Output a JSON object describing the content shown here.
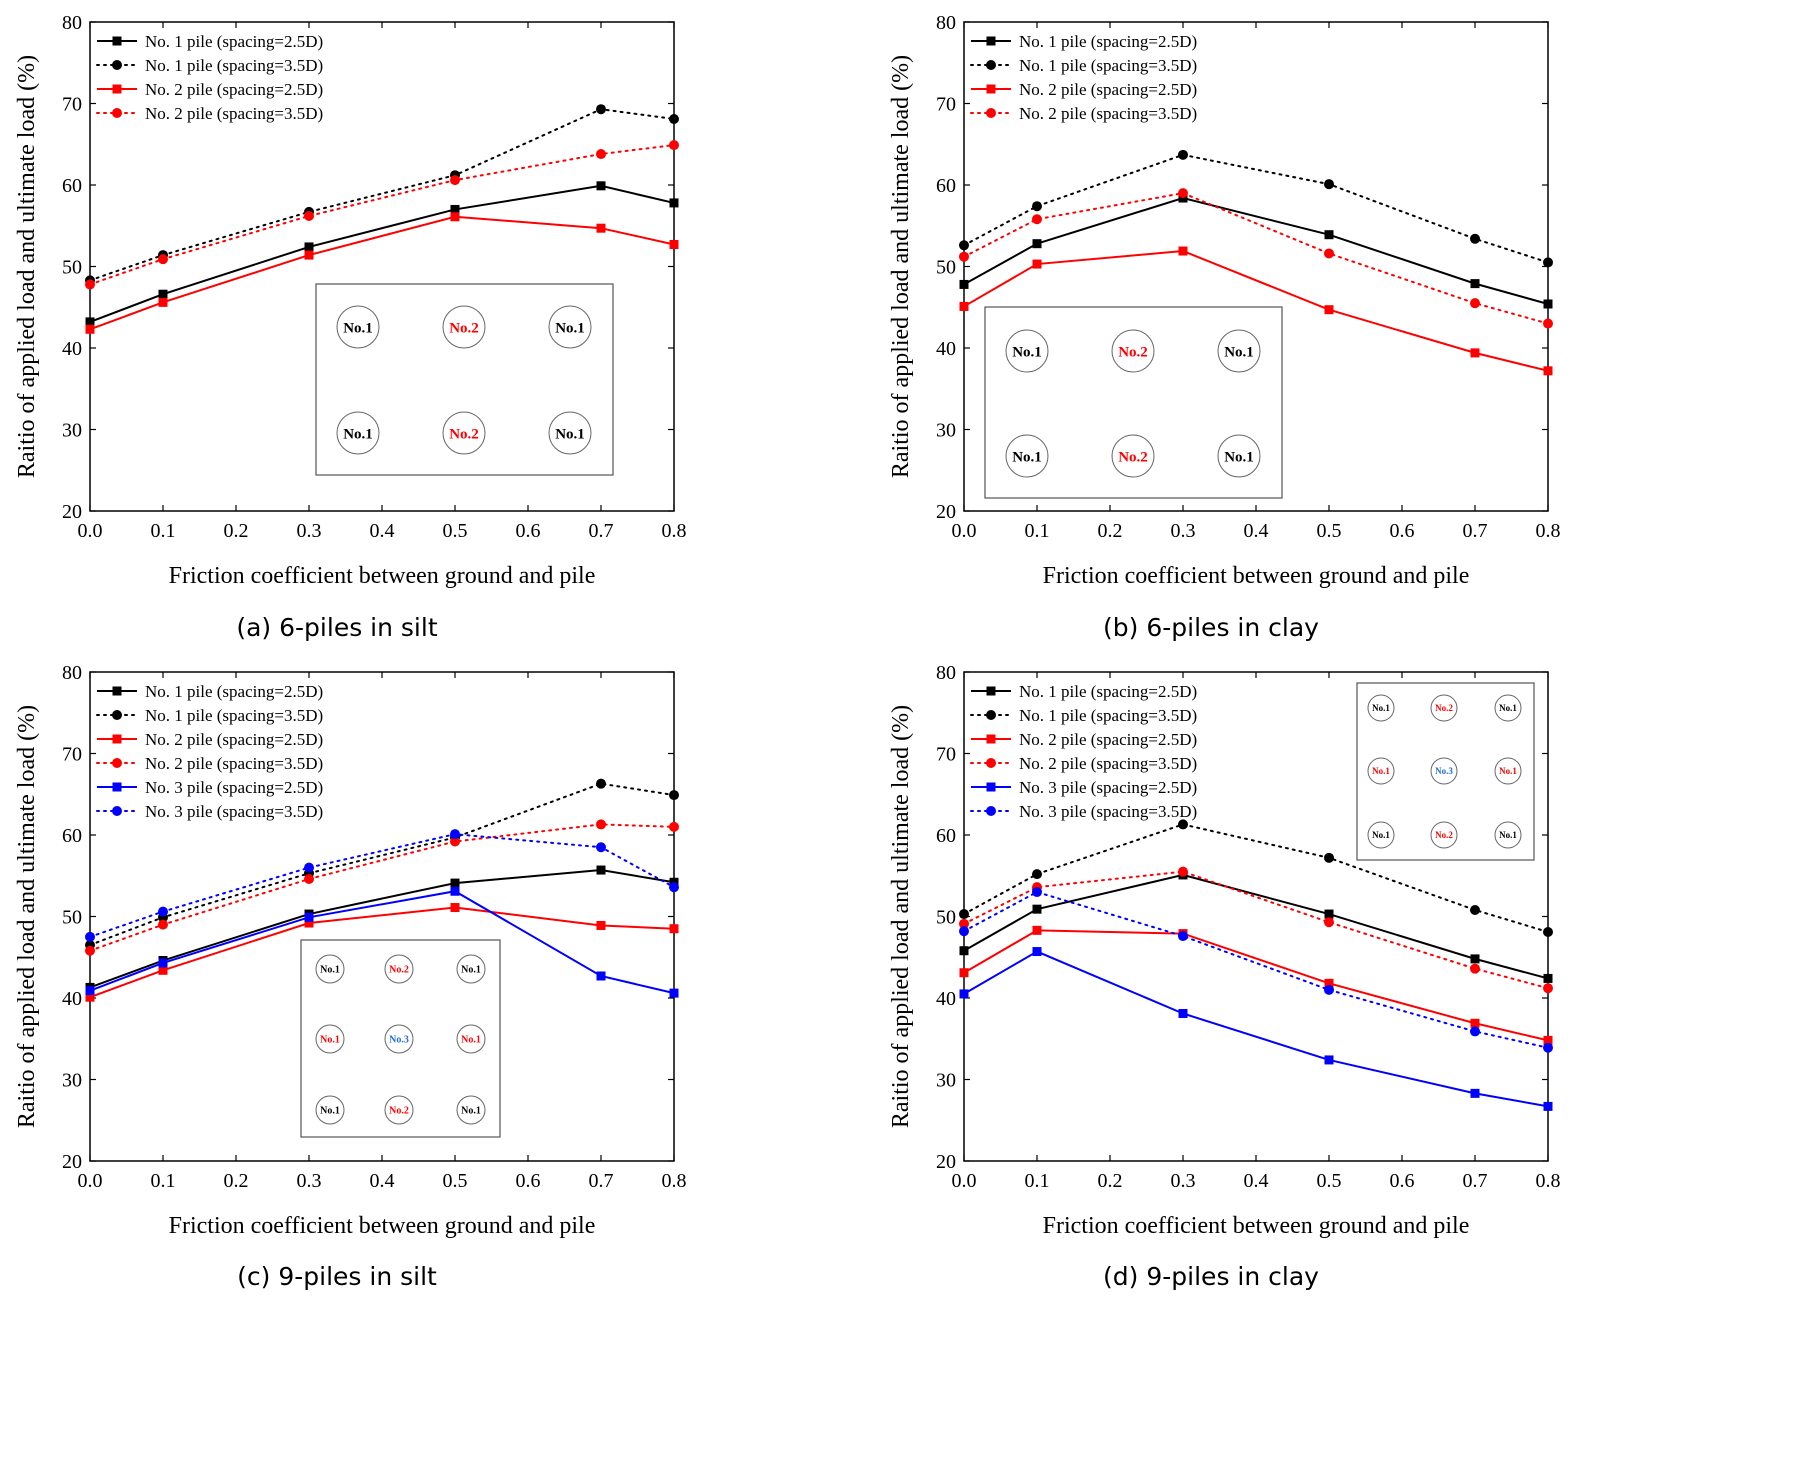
{
  "colors": {
    "black": "#000000",
    "red": "#ff0000",
    "blue": "#0000ff",
    "inset_blue": "#1f6fd1",
    "frame": "#000000",
    "inset_border": "#555555",
    "pile_circle": "#666666"
  },
  "chart_data": [
    {
      "type": "line",
      "caption": "(a) 6-piles in silt",
      "xlabel": "Friction coefficient between ground and pile",
      "ylabel": "Raitio of applied load and ultimate load (%)",
      "xlim": [
        0.0,
        0.8
      ],
      "ylim": [
        20,
        80
      ],
      "xticks": [
        "0.0",
        "0.1",
        "0.2",
        "0.3",
        "0.4",
        "0.5",
        "0.6",
        "0.7",
        "0.8"
      ],
      "yticks": [
        "20",
        "30",
        "40",
        "50",
        "60",
        "70",
        "80"
      ],
      "legend_position": "top-left",
      "x": [
        0.0,
        0.1,
        0.3,
        0.5,
        0.7,
        0.8
      ],
      "series": [
        {
          "name": "No. 1 pile (spacing=2.5D)",
          "color": "black",
          "style": "solid",
          "marker": "square",
          "values": [
            43.2,
            46.6,
            52.4,
            57.0,
            59.9,
            57.8
          ]
        },
        {
          "name": "No. 1 pile (spacing=3.5D)",
          "color": "black",
          "style": "dotted",
          "marker": "circle",
          "values": [
            48.3,
            51.4,
            56.7,
            61.2,
            69.3,
            68.1
          ]
        },
        {
          "name": "No. 2 pile (spacing=2.5D)",
          "color": "red",
          "style": "solid",
          "marker": "square",
          "values": [
            42.3,
            45.6,
            51.4,
            56.1,
            54.7,
            52.7
          ]
        },
        {
          "name": "No. 2 pile (spacing=3.5D)",
          "color": "red",
          "style": "dotted",
          "marker": "circle",
          "values": [
            47.8,
            50.9,
            56.2,
            60.6,
            63.8,
            64.9
          ]
        }
      ],
      "inset": {
        "rows": [
          [
            {
              "text": "No.1",
              "color": "black"
            },
            {
              "text": "No.2",
              "color": "red"
            },
            {
              "text": "No.1",
              "color": "black"
            }
          ],
          [
            {
              "text": "No.1",
              "color": "black"
            },
            {
              "text": "No.2",
              "color": "red"
            },
            {
              "text": "No.1",
              "color": "black"
            }
          ]
        ]
      }
    },
    {
      "type": "line",
      "caption": "(b) 6-piles in clay",
      "xlabel": "Friction coefficient between ground and pile",
      "ylabel": "Raitio of applied load and ultimate load (%)",
      "xlim": [
        0.0,
        0.8
      ],
      "ylim": [
        20,
        80
      ],
      "xticks": [
        "0.0",
        "0.1",
        "0.2",
        "0.3",
        "0.4",
        "0.5",
        "0.6",
        "0.7",
        "0.8"
      ],
      "yticks": [
        "20",
        "30",
        "40",
        "50",
        "60",
        "70",
        "80"
      ],
      "legend_position": "top-left",
      "x": [
        0.0,
        0.1,
        0.3,
        0.5,
        0.7,
        0.8
      ],
      "series": [
        {
          "name": "No. 1 pile (spacing=2.5D)",
          "color": "black",
          "style": "solid",
          "marker": "square",
          "values": [
            47.8,
            52.8,
            58.4,
            53.9,
            47.9,
            45.4
          ]
        },
        {
          "name": "No. 1 pile (spacing=3.5D)",
          "color": "black",
          "style": "dotted",
          "marker": "circle",
          "values": [
            52.6,
            57.4,
            63.7,
            60.1,
            53.4,
            50.5
          ]
        },
        {
          "name": "No. 2 pile (spacing=2.5D)",
          "color": "red",
          "style": "solid",
          "marker": "square",
          "values": [
            45.1,
            50.3,
            51.9,
            44.7,
            39.4,
            37.2
          ]
        },
        {
          "name": "No. 2 pile (spacing=3.5D)",
          "color": "red",
          "style": "dotted",
          "marker": "circle",
          "values": [
            51.2,
            55.8,
            59.0,
            51.6,
            45.5,
            43.0
          ]
        }
      ],
      "inset": {
        "rows": [
          [
            {
              "text": "No.1",
              "color": "black"
            },
            {
              "text": "No.2",
              "color": "red"
            },
            {
              "text": "No.1",
              "color": "black"
            }
          ],
          [
            {
              "text": "No.1",
              "color": "black"
            },
            {
              "text": "No.2",
              "color": "red"
            },
            {
              "text": "No.1",
              "color": "black"
            }
          ]
        ]
      }
    },
    {
      "type": "line",
      "caption": "(c) 9-piles in silt",
      "xlabel": "Friction coefficient between ground and pile",
      "ylabel": "Raitio of applied load and ultimate load (%)",
      "xlim": [
        0.0,
        0.8
      ],
      "ylim": [
        20,
        80
      ],
      "xticks": [
        "0.0",
        "0.1",
        "0.2",
        "0.3",
        "0.4",
        "0.5",
        "0.6",
        "0.7",
        "0.8"
      ],
      "yticks": [
        "20",
        "30",
        "40",
        "50",
        "60",
        "70",
        "80"
      ],
      "legend_position": "top-left",
      "x": [
        0.0,
        0.1,
        0.3,
        0.5,
        0.7,
        0.8
      ],
      "series": [
        {
          "name": "No. 1 pile (spacing=2.5D)",
          "color": "black",
          "style": "solid",
          "marker": "square",
          "values": [
            41.3,
            44.6,
            50.3,
            54.1,
            55.7,
            54.2
          ]
        },
        {
          "name": "No. 1 pile (spacing=3.5D)",
          "color": "black",
          "style": "dotted",
          "marker": "circle",
          "values": [
            46.5,
            49.9,
            55.3,
            59.7,
            66.3,
            64.9
          ]
        },
        {
          "name": "No. 2 pile (spacing=2.5D)",
          "color": "red",
          "style": "solid",
          "marker": "square",
          "values": [
            40.1,
            43.4,
            49.2,
            51.1,
            48.9,
            48.5
          ]
        },
        {
          "name": "No. 2 pile (spacing=3.5D)",
          "color": "red",
          "style": "dotted",
          "marker": "circle",
          "values": [
            45.8,
            49.0,
            54.6,
            59.2,
            61.3,
            61.0
          ]
        },
        {
          "name": "No. 3 pile (spacing=2.5D)",
          "color": "blue",
          "style": "solid",
          "marker": "square",
          "values": [
            40.9,
            44.3,
            49.9,
            53.1,
            42.7,
            40.6
          ]
        },
        {
          "name": "No. 3 pile (spacing=3.5D)",
          "color": "blue",
          "style": "dotted",
          "marker": "circle",
          "values": [
            47.5,
            50.6,
            56.0,
            60.1,
            58.5,
            53.6
          ]
        }
      ],
      "inset": {
        "rows": [
          [
            {
              "text": "No.1",
              "color": "black"
            },
            {
              "text": "No.2",
              "color": "red"
            },
            {
              "text": "No.1",
              "color": "black"
            }
          ],
          [
            {
              "text": "No.1",
              "color": "red"
            },
            {
              "text": "No.3",
              "color": "inset_blue"
            },
            {
              "text": "No.1",
              "color": "red"
            }
          ],
          [
            {
              "text": "No.1",
              "color": "black"
            },
            {
              "text": "No.2",
              "color": "red"
            },
            {
              "text": "No.1",
              "color": "black"
            }
          ]
        ]
      }
    },
    {
      "type": "line",
      "caption": "(d) 9-piles in clay",
      "xlabel": "Friction coefficient between ground and pile",
      "ylabel": "Raitio of applied load and ultimate load (%)",
      "xlim": [
        0.0,
        0.8
      ],
      "ylim": [
        20,
        80
      ],
      "xticks": [
        "0.0",
        "0.1",
        "0.2",
        "0.3",
        "0.4",
        "0.5",
        "0.6",
        "0.7",
        "0.8"
      ],
      "yticks": [
        "20",
        "30",
        "40",
        "50",
        "60",
        "70",
        "80"
      ],
      "legend_position": "top-left",
      "x": [
        0.0,
        0.1,
        0.3,
        0.5,
        0.7,
        0.8
      ],
      "series": [
        {
          "name": "No. 1 pile (spacing=2.5D)",
          "color": "black",
          "style": "solid",
          "marker": "square",
          "values": [
            45.8,
            50.9,
            55.1,
            50.3,
            44.8,
            42.4
          ]
        },
        {
          "name": "No. 1 pile (spacing=3.5D)",
          "color": "black",
          "style": "dotted",
          "marker": "circle",
          "values": [
            50.3,
            55.2,
            61.3,
            57.2,
            50.8,
            48.1
          ]
        },
        {
          "name": "No. 2 pile (spacing=2.5D)",
          "color": "red",
          "style": "solid",
          "marker": "square",
          "values": [
            43.1,
            48.3,
            47.9,
            41.8,
            36.9,
            34.8
          ]
        },
        {
          "name": "No. 2 pile (spacing=3.5D)",
          "color": "red",
          "style": "dotted",
          "marker": "circle",
          "values": [
            49.1,
            53.6,
            55.5,
            49.3,
            43.6,
            41.2
          ]
        },
        {
          "name": "No. 3 pile (spacing=2.5D)",
          "color": "blue",
          "style": "solid",
          "marker": "square",
          "values": [
            40.5,
            45.7,
            38.1,
            32.4,
            28.3,
            26.7
          ]
        },
        {
          "name": "No. 3 pile (spacing=3.5D)",
          "color": "blue",
          "style": "dotted",
          "marker": "circle",
          "values": [
            48.2,
            53.0,
            47.6,
            41.0,
            35.9,
            33.9
          ]
        }
      ],
      "inset": {
        "rows": [
          [
            {
              "text": "No.1",
              "color": "black"
            },
            {
              "text": "No.2",
              "color": "red"
            },
            {
              "text": "No.1",
              "color": "black"
            }
          ],
          [
            {
              "text": "No.1",
              "color": "red"
            },
            {
              "text": "No.3",
              "color": "inset_blue"
            },
            {
              "text": "No.1",
              "color": "red"
            }
          ],
          [
            {
              "text": "No.1",
              "color": "black"
            },
            {
              "text": "No.2",
              "color": "red"
            },
            {
              "text": "No.1",
              "color": "black"
            }
          ]
        ]
      }
    }
  ]
}
